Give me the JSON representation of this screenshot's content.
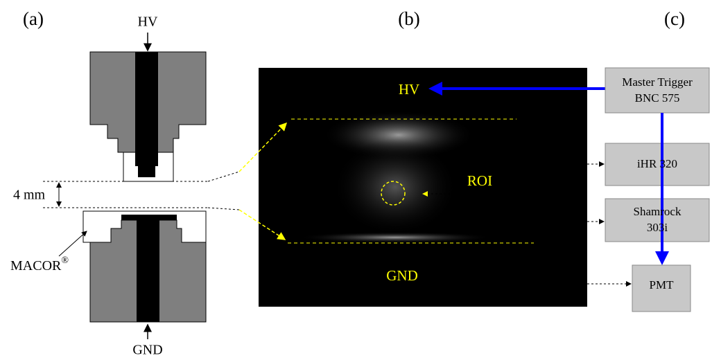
{
  "panels": {
    "a": {
      "label": "(a)",
      "top_label": "HV",
      "bottom_label": "GND",
      "gap": "4 mm",
      "material": "MACOR",
      "material_mark": "®"
    },
    "b": {
      "label": "(b)",
      "hv": "HV",
      "roi": "ROI",
      "gnd": "GND"
    },
    "c": {
      "label": "(c)",
      "boxes": [
        {
          "lines": [
            "Master Trigger",
            "BNC 575"
          ]
        },
        {
          "lines": [
            "iHR 320"
          ]
        },
        {
          "lines": [
            "Shamrock",
            "303i"
          ]
        },
        {
          "lines": [
            "PMT"
          ]
        }
      ]
    }
  }
}
